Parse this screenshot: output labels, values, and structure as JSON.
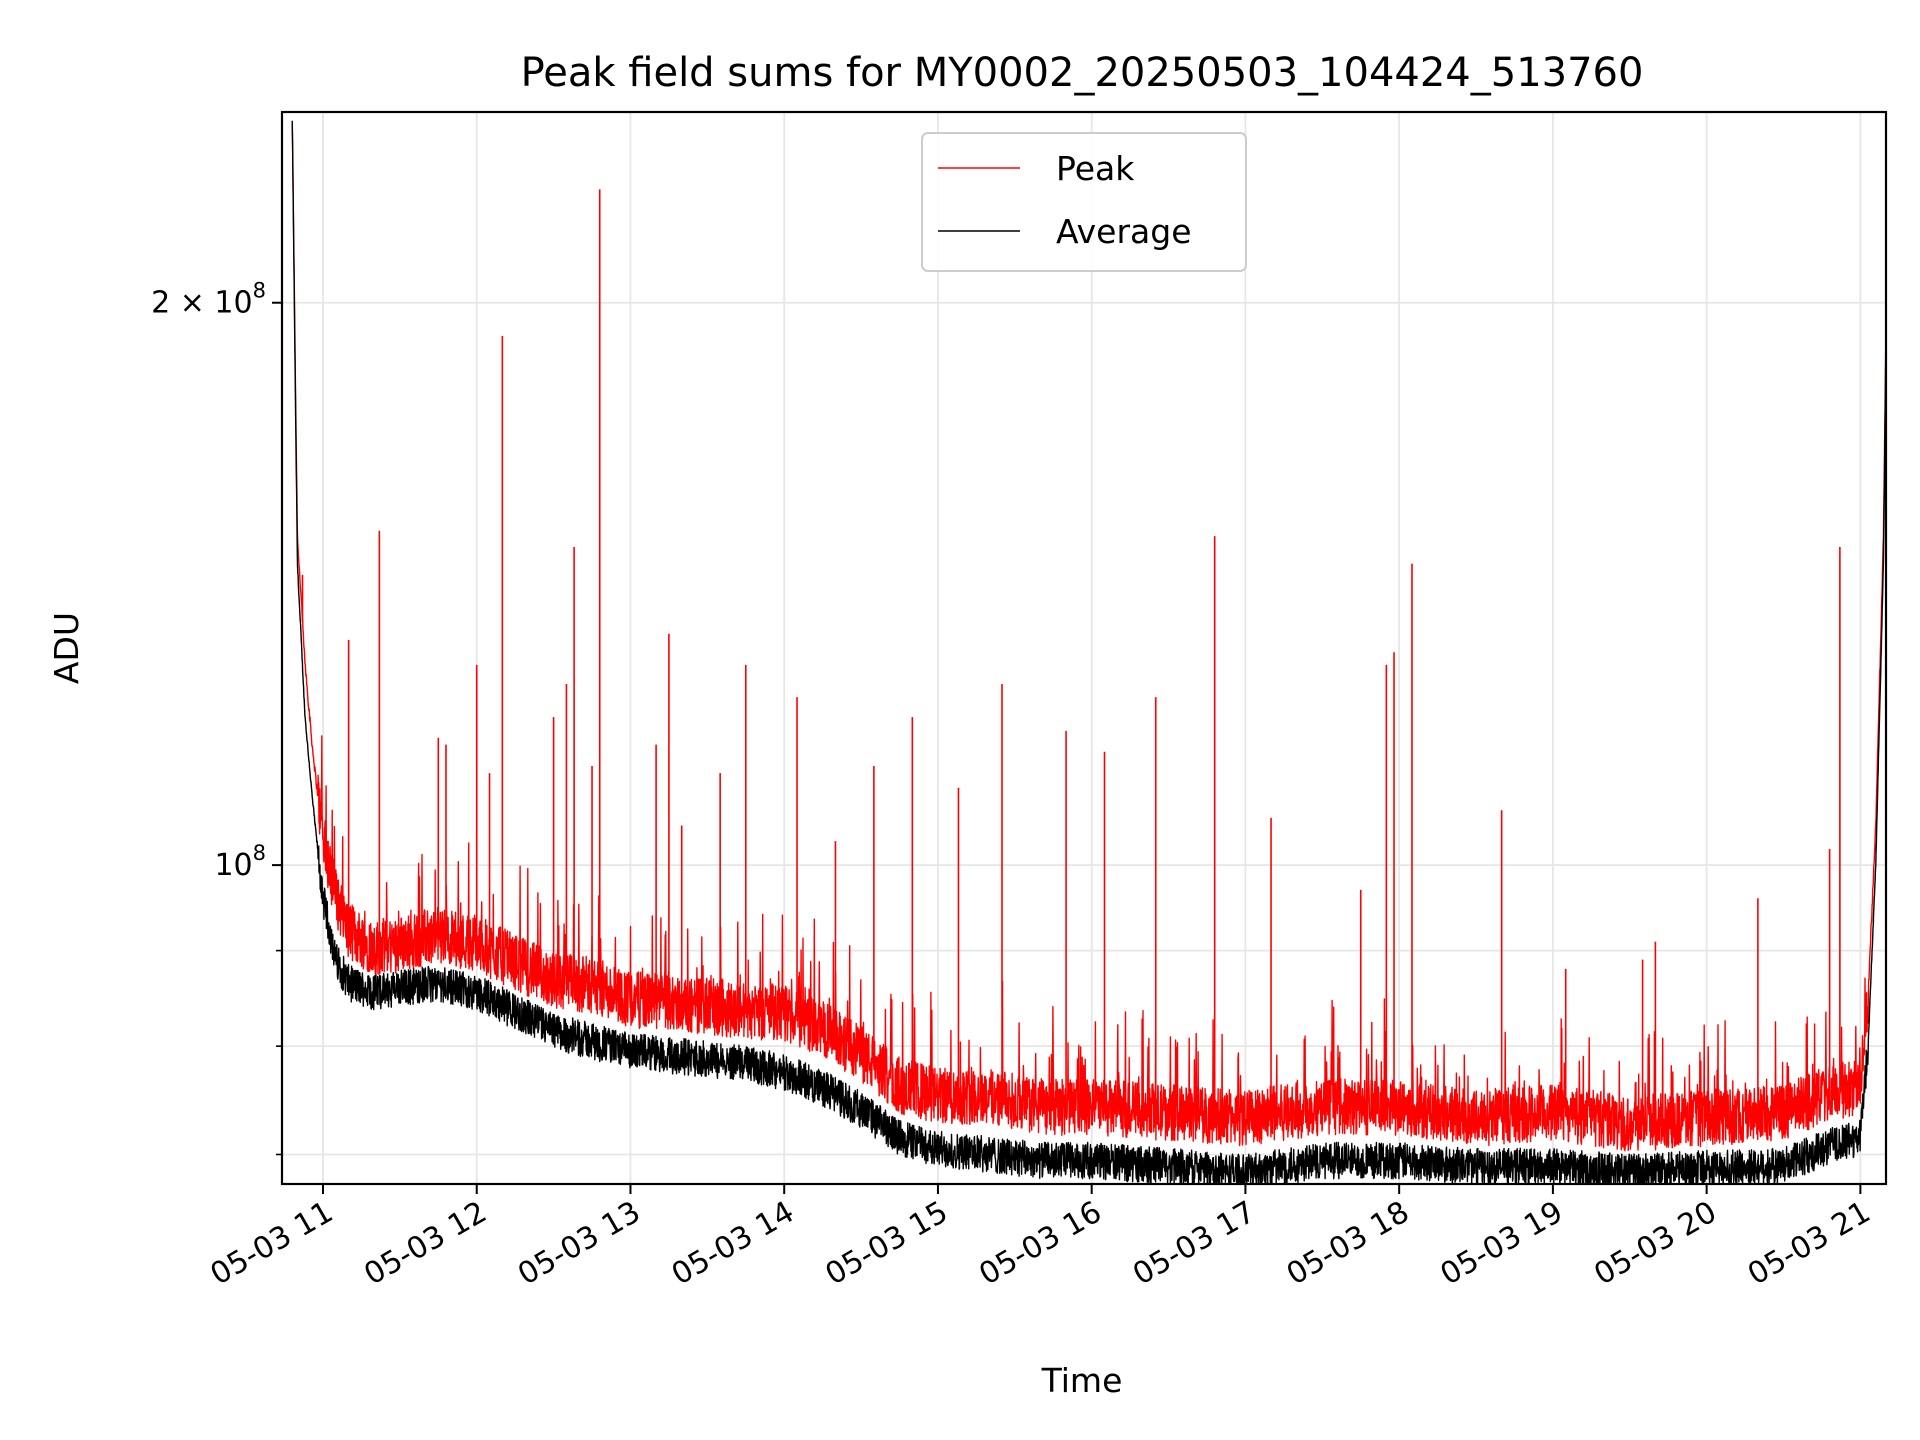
{
  "chart_data": {
    "type": "line",
    "title": "Peak field sums for MY0002_20250503_104424_513760",
    "xlabel": "Time",
    "ylabel": "ADU",
    "y_scale": "log",
    "y_range": [
      67500000,
      253000000
    ],
    "x_range": [
      "2025-05-03 10:44",
      "2025-05-03 21:10"
    ],
    "grid": true,
    "legend_position": "top-center",
    "x_ticks": [
      {
        "value": "2025-05-03 11:00",
        "label": "05-03 11"
      },
      {
        "value": "2025-05-03 12:00",
        "label": "05-03 12"
      },
      {
        "value": "2025-05-03 13:00",
        "label": "05-03 13"
      },
      {
        "value": "2025-05-03 14:00",
        "label": "05-03 14"
      },
      {
        "value": "2025-05-03 15:00",
        "label": "05-03 15"
      },
      {
        "value": "2025-05-03 16:00",
        "label": "05-03 16"
      },
      {
        "value": "2025-05-03 17:00",
        "label": "05-03 17"
      },
      {
        "value": "2025-05-03 18:00",
        "label": "05-03 18"
      },
      {
        "value": "2025-05-03 19:00",
        "label": "05-03 19"
      },
      {
        "value": "2025-05-03 20:00",
        "label": "05-03 20"
      },
      {
        "value": "2025-05-03 21:00",
        "label": "05-03 21"
      }
    ],
    "y_ticks_major": [
      {
        "value": 100000000,
        "base": "10",
        "exp": "8"
      },
      {
        "value": 200000000,
        "base": "2 × 10",
        "exp": "8"
      }
    ],
    "y_ticks_minor": [
      70000000,
      80000000,
      90000000
    ],
    "series": [
      {
        "name": "Peak",
        "color": "#ff0000",
        "x": [
          "10:48",
          "10:50",
          "10:53",
          "10:56",
          "11:00",
          "11:05",
          "11:10",
          "11:20",
          "11:30",
          "11:45",
          "12:00",
          "12:15",
          "12:30",
          "12:45",
          "13:00",
          "13:20",
          "13:40",
          "14:00",
          "14:15",
          "14:30",
          "14:45",
          "15:00",
          "15:20",
          "15:40",
          "16:00",
          "16:30",
          "17:00",
          "17:30",
          "18:00",
          "18:30",
          "19:00",
          "19:30",
          "20:00",
          "20:30",
          "20:45",
          "21:00",
          "21:03",
          "21:06",
          "21:09",
          "21:11"
        ],
        "values": [
          250000000,
          150000000,
          128000000,
          115000000,
          103000000,
          96000000,
          92000000,
          90000000,
          90500000,
          91500000,
          90500000,
          88500000,
          86500000,
          86000000,
          84500000,
          84000000,
          83500000,
          83000000,
          81500000,
          79000000,
          76000000,
          75000000,
          75000000,
          74000000,
          74000000,
          73500000,
          73000000,
          74000000,
          74000000,
          73000000,
          73500000,
          72500000,
          73000000,
          73500000,
          75000000,
          76000000,
          85000000,
          105000000,
          150000000,
          253000000
        ],
        "spikes": [
          {
            "x": "10:52",
            "y": 143000000
          },
          {
            "x": "11:10",
            "y": 132000000
          },
          {
            "x": "11:22",
            "y": 151000000
          },
          {
            "x": "11:45",
            "y": 117000000
          },
          {
            "x": "11:48",
            "y": 116000000
          },
          {
            "x": "12:00",
            "y": 128000000
          },
          {
            "x": "12:05",
            "y": 112000000
          },
          {
            "x": "12:10",
            "y": 192000000
          },
          {
            "x": "12:30",
            "y": 120000000
          },
          {
            "x": "12:35",
            "y": 125000000
          },
          {
            "x": "12:38",
            "y": 148000000
          },
          {
            "x": "12:45",
            "y": 113000000
          },
          {
            "x": "12:48",
            "y": 230000000
          },
          {
            "x": "13:10",
            "y": 116000000
          },
          {
            "x": "13:15",
            "y": 133000000
          },
          {
            "x": "13:20",
            "y": 105000000
          },
          {
            "x": "13:35",
            "y": 112000000
          },
          {
            "x": "13:45",
            "y": 128000000
          },
          {
            "x": "14:05",
            "y": 123000000
          },
          {
            "x": "14:20",
            "y": 103000000
          },
          {
            "x": "14:35",
            "y": 113000000
          },
          {
            "x": "14:50",
            "y": 120000000
          },
          {
            "x": "15:08",
            "y": 110000000
          },
          {
            "x": "15:25",
            "y": 125000000
          },
          {
            "x": "15:50",
            "y": 118000000
          },
          {
            "x": "16:05",
            "y": 115000000
          },
          {
            "x": "16:25",
            "y": 123000000
          },
          {
            "x": "16:48",
            "y": 150000000
          },
          {
            "x": "17:10",
            "y": 106000000
          },
          {
            "x": "17:45",
            "y": 97000000
          },
          {
            "x": "17:55",
            "y": 128000000
          },
          {
            "x": "17:58",
            "y": 130000000
          },
          {
            "x": "18:05",
            "y": 145000000
          },
          {
            "x": "18:40",
            "y": 107000000
          },
          {
            "x": "19:05",
            "y": 88000000
          },
          {
            "x": "19:35",
            "y": 89000000
          },
          {
            "x": "19:40",
            "y": 91000000
          },
          {
            "x": "20:20",
            "y": 96000000
          },
          {
            "x": "20:48",
            "y": 102000000
          },
          {
            "x": "20:52",
            "y": 148000000
          }
        ]
      },
      {
        "name": "Average",
        "color": "#000000",
        "x": [
          "10:48",
          "10:50",
          "10:53",
          "10:56",
          "11:00",
          "11:05",
          "11:10",
          "11:20",
          "11:30",
          "11:45",
          "12:00",
          "12:15",
          "12:30",
          "12:45",
          "13:00",
          "13:20",
          "13:40",
          "14:00",
          "14:15",
          "14:30",
          "14:45",
          "15:00",
          "15:20",
          "15:40",
          "16:00",
          "16:30",
          "17:00",
          "17:30",
          "18:00",
          "18:30",
          "19:00",
          "19:30",
          "20:00",
          "20:30",
          "20:45",
          "21:00",
          "21:03",
          "21:06",
          "21:09",
          "21:11"
        ],
        "values": [
          250000000,
          145000000,
          120000000,
          108000000,
          96000000,
          89000000,
          86500000,
          85500000,
          86000000,
          86500000,
          85500000,
          83500000,
          81500000,
          80500000,
          79500000,
          79000000,
          78500000,
          77500000,
          76000000,
          74000000,
          71500000,
          70500000,
          70000000,
          69500000,
          69500000,
          69000000,
          68500000,
          69500000,
          69500000,
          69000000,
          69000000,
          68500000,
          68800000,
          69000000,
          70500000,
          71500000,
          80000000,
          100000000,
          145000000,
          253000000
        ]
      }
    ]
  }
}
